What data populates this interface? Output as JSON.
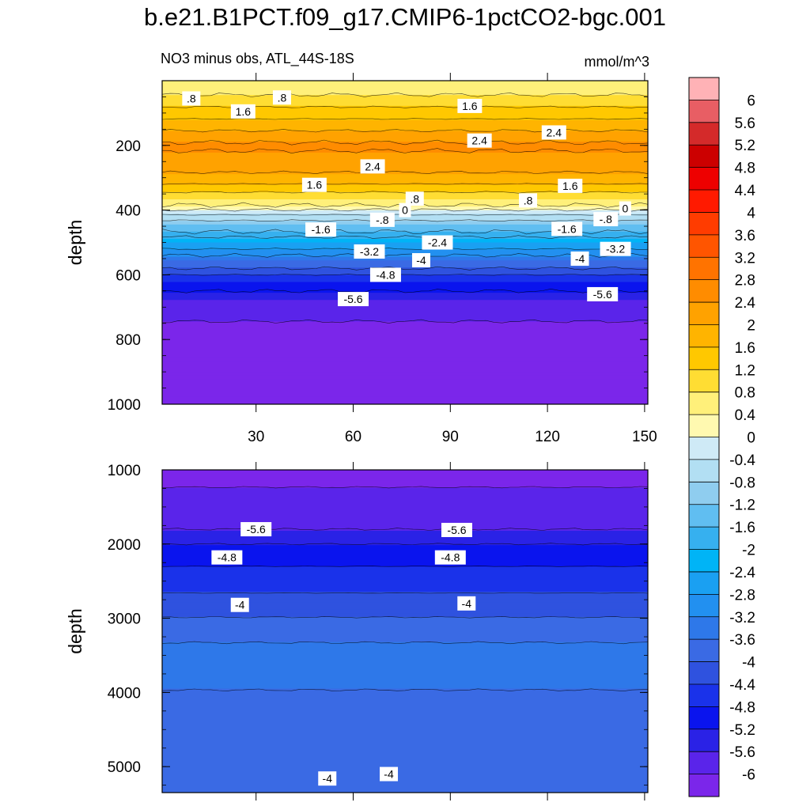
{
  "title": "b.e21.B1PCT.f09_g17.CMIP6-1pctCO2-bgc.001",
  "subtitle": "NO3 minus obs, ATL_44S-18S",
  "units": "mmol/m^3",
  "chart_data": [
    {
      "type": "contour",
      "panel": "upper",
      "ylabel": "depth",
      "xlabel": "",
      "xlim": [
        1,
        151
      ],
      "ylim": [
        0,
        1000
      ],
      "y_inverted": true,
      "x_ticks": [
        "30",
        "60",
        "90",
        "120",
        "150"
      ],
      "y_ticks": [
        "200",
        "400",
        "600",
        "800",
        "1000"
      ],
      "approx_depth_profile": {
        "depth": [
          25,
          100,
          200,
          300,
          370,
          410,
          450,
          500,
          560,
          620,
          680,
          760,
          1000
        ],
        "value": [
          0.6,
          1.4,
          2.5,
          1.9,
          0.8,
          -0.3,
          -1.2,
          -2.4,
          -3.6,
          -4.8,
          -5.6,
          -6.1,
          -6.2
        ]
      },
      "contour_labels": [
        {
          "text": ".8",
          "x": 10,
          "y": 55
        },
        {
          "text": "1.6",
          "x": 26,
          "y": 95
        },
        {
          "text": ".8",
          "x": 38,
          "y": 52
        },
        {
          "text": "1.6",
          "x": 96,
          "y": 78
        },
        {
          "text": "2.4",
          "x": 99,
          "y": 185
        },
        {
          "text": "2.4",
          "x": 122,
          "y": 160
        },
        {
          "text": "2.4",
          "x": 66,
          "y": 265
        },
        {
          "text": "1.6",
          "x": 48,
          "y": 322
        },
        {
          "text": "1.6",
          "x": 127,
          "y": 325
        },
        {
          "text": ".8",
          "x": 79,
          "y": 365
        },
        {
          "text": ".8",
          "x": 114,
          "y": 370
        },
        {
          "text": "0",
          "x": 76,
          "y": 400
        },
        {
          "text": "0",
          "x": 144,
          "y": 395
        },
        {
          "text": "-.8",
          "x": 69,
          "y": 430
        },
        {
          "text": "-.8",
          "x": 138,
          "y": 428
        },
        {
          "text": "-1.6",
          "x": 50,
          "y": 460
        },
        {
          "text": "-1.6",
          "x": 126,
          "y": 458
        },
        {
          "text": "-2.4",
          "x": 86,
          "y": 500
        },
        {
          "text": "-3.2",
          "x": 65,
          "y": 528
        },
        {
          "text": "-3.2",
          "x": 141,
          "y": 520
        },
        {
          "text": "-4",
          "x": 81,
          "y": 555
        },
        {
          "text": "-4",
          "x": 130,
          "y": 550
        },
        {
          "text": "-4.8",
          "x": 70,
          "y": 600
        },
        {
          "text": "-5.6",
          "x": 60,
          "y": 675
        },
        {
          "text": "-5.6",
          "x": 137,
          "y": 660
        }
      ]
    },
    {
      "type": "contour",
      "panel": "lower",
      "ylabel": "depth",
      "xlabel": "",
      "xlim": [
        1,
        151
      ],
      "ylim": [
        1000,
        5350
      ],
      "y_inverted": true,
      "y_ticks": [
        "1000",
        "2000",
        "3000",
        "4000",
        "5000"
      ],
      "approx_depth_profile": {
        "depth": [
          1000,
          1700,
          1900,
          2100,
          2500,
          2900,
          3500,
          4200,
          5000,
          5300
        ],
        "value": [
          -6.1,
          -5.8,
          -5.4,
          -5.0,
          -4.6,
          -4.1,
          -3.4,
          -3.7,
          -3.8,
          -4.0
        ]
      },
      "contour_labels": [
        {
          "text": "-5.6",
          "x": 30,
          "y": 1800
        },
        {
          "text": "-5.6",
          "x": 92,
          "y": 1810
        },
        {
          "text": "-4.8",
          "x": 21,
          "y": 2180
        },
        {
          "text": "-4.8",
          "x": 90,
          "y": 2180
        },
        {
          "text": "-4",
          "x": 25,
          "y": 2820
        },
        {
          "text": "-4",
          "x": 95,
          "y": 2800
        },
        {
          "text": "-4",
          "x": 52,
          "y": 5160
        },
        {
          "text": "-4",
          "x": 71,
          "y": 5100
        }
      ]
    },
    {
      "type": "colorbar",
      "labels": [
        "6",
        "5.6",
        "5.2",
        "4.8",
        "4.4",
        "4",
        "3.6",
        "3.2",
        "2.8",
        "2.4",
        "2",
        "1.6",
        "1.2",
        "0.8",
        "0.4",
        "0",
        "-0.4",
        "-0.8",
        "-1.2",
        "-1.6",
        "-2",
        "-2.4",
        "-2.8",
        "-3.2",
        "-3.6",
        "-4",
        "-4.4",
        "-4.8",
        "-5.2",
        "-5.6",
        "-6"
      ],
      "colors": [
        "#ffb2b6",
        "#e85e64",
        "#d42a2a",
        "#cc0000",
        "#ee0000",
        "#ff1a00",
        "#ff3c00",
        "#ff5500",
        "#ff7300",
        "#ff8c00",
        "#ffa200",
        "#ffb400",
        "#ffc800",
        "#ffdd33",
        "#fff07a",
        "#fff9b0",
        "#cfeaf6",
        "#b2dff3",
        "#8fcdef",
        "#60bef1",
        "#36b0ef",
        "#00b4f6",
        "#1aa0f2",
        "#2290f0",
        "#2e78e9",
        "#3a6ae4",
        "#2f52df",
        "#1a32ea",
        "#0a14ee",
        "#2a22e6",
        "#5a24ea",
        "#7b26ea"
      ]
    }
  ]
}
